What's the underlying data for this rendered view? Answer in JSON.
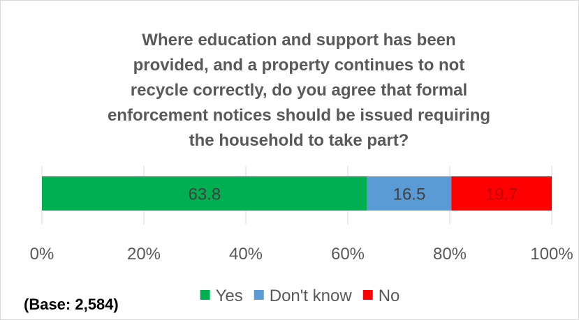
{
  "chart_data": {
    "type": "bar",
    "orientation": "horizontal",
    "stacked": true,
    "title_lines": [
      "Where education and support has been",
      "provided, and a property continues to not",
      "recycle correctly, do you agree that formal",
      "enforcement notices should be issued requiring",
      "the household to take part?"
    ],
    "series": [
      {
        "name": "Yes",
        "value": 63.8,
        "label": "63.8",
        "color": "#00b050",
        "label_color": "#404040"
      },
      {
        "name": "Don't know",
        "value": 16.5,
        "label": "16.5",
        "color": "#5b9bd5",
        "label_color": "#404040"
      },
      {
        "name": "No",
        "value": 19.7,
        "label": "19.7",
        "color": "#ff0000",
        "label_color": "#c00000"
      }
    ],
    "xlim": [
      0,
      100
    ],
    "x_ticks": [
      {
        "value": 0,
        "label": "0%"
      },
      {
        "value": 20,
        "label": "20%"
      },
      {
        "value": 40,
        "label": "40%"
      },
      {
        "value": 60,
        "label": "60%"
      },
      {
        "value": 80,
        "label": "80%"
      },
      {
        "value": 100,
        "label": "100%"
      }
    ],
    "grid": true,
    "gridline_color": "#d9d9d9",
    "legend_position": "bottom"
  },
  "note": "(Base: 2,584)"
}
